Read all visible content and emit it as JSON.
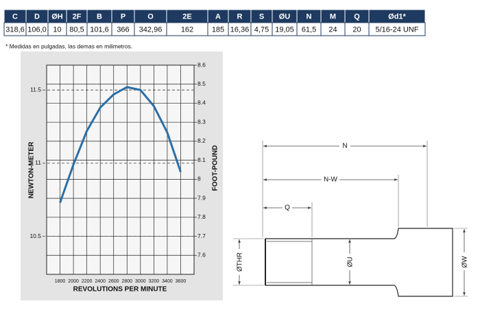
{
  "table": {
    "header": [
      "C",
      "D",
      "ØH",
      "2F",
      "B",
      "P",
      "O",
      "2E",
      "A",
      "R",
      "S",
      "ØU",
      "N",
      "M",
      "Q",
      "Ød1*"
    ],
    "rows": [
      [
        "318,6",
        "106,0",
        "10",
        "80,5",
        "101,6",
        "366",
        "342,96",
        "162",
        "185",
        "16,36",
        "4,75",
        "19,05",
        "61,5",
        "24",
        "20",
        "5/16-24 UNF"
      ]
    ]
  },
  "note": "* Medidas en pulgadas, las demas en milimetros.",
  "chart_data": {
    "type": "line",
    "x_label": "REVOLUTIONS PER MINUTE",
    "y_label": "NEWTON-METER",
    "y2_label": "FOOT-POUND",
    "x": [
      1800,
      2000,
      2200,
      2400,
      2600,
      2800,
      3000,
      3200,
      3400,
      3600
    ],
    "series": [
      {
        "color": "#2b6ea6",
        "values": [
          10.73,
          10.99,
          11.22,
          11.38,
          11.47,
          11.52,
          11.5,
          11.39,
          11.21,
          10.94
        ]
      }
    ],
    "xlim": [
      1600,
      3800
    ],
    "xticks": [
      1800,
      2000,
      2200,
      2400,
      2600,
      2800,
      3000,
      3200,
      3400,
      3600
    ],
    "ylim": [
      10.24,
      11.67
    ],
    "yticks": [
      10.5,
      11,
      11.5
    ],
    "y2lim": [
      7.5,
      8.6
    ],
    "y2ticks": [
      7.6,
      7.7,
      7.8,
      7.9,
      8,
      8.1,
      8.2,
      8.3,
      8.4,
      8.5,
      8.6
    ],
    "grid": true
  },
  "diagram": {
    "dimensions": [
      "N",
      "N-W",
      "Q",
      "ØTHR",
      "ØU",
      "ØW"
    ]
  }
}
